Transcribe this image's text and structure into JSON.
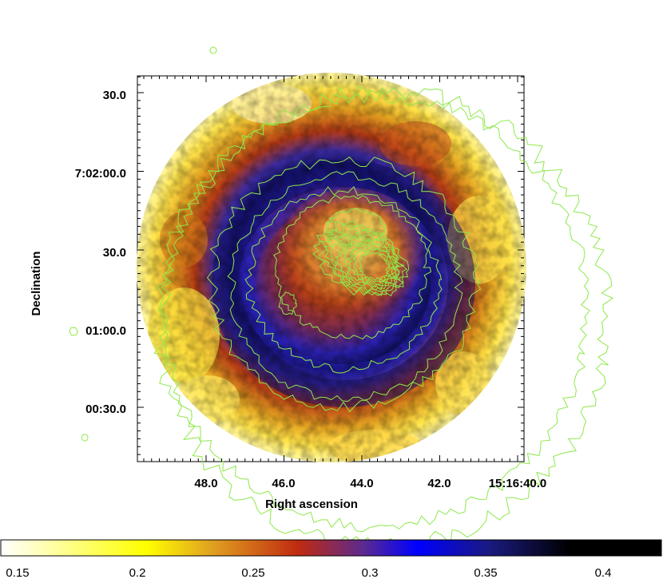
{
  "figure": {
    "x_axis": {
      "label": "Right ascension",
      "ticks": [
        "48.0",
        "46.0",
        "44.0",
        "42.0",
        "15:16:40.0"
      ]
    },
    "y_axis": {
      "label": "Declination",
      "ticks": [
        "30.0",
        "7:02:00.0",
        "30.0",
        "01:00.0",
        "00:30.0"
      ]
    },
    "colorbar": {
      "ticks": [
        "0.15",
        "0.2",
        "0.25",
        "0.3",
        "0.35",
        "0.4"
      ],
      "colormap_stops": [
        "#ffffff",
        "#ffff00",
        "#d89a1a",
        "#c02a10",
        "#3030b0",
        "#0000ff",
        "#000000"
      ]
    },
    "overlay": {
      "contour_color": "#8ee84a"
    }
  }
}
